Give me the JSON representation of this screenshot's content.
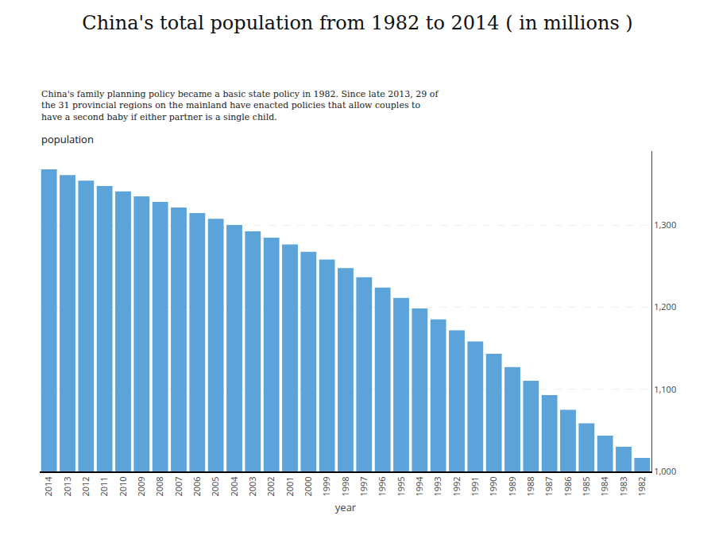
{
  "chart_data": {
    "type": "bar",
    "title": "China's total population from 1982 to 2014 ( in millions )",
    "annotation": "China's family planning policy became a basic state policy in 1982. Since late 2013, 29 of\nthe 31 provincial regions on the mainland have enacted policies that allow couples to\nhave a second baby if either partner is a single child.",
    "xlabel": "year",
    "ylabel": "population",
    "categories": [
      "2014",
      "2013",
      "2012",
      "2011",
      "2010",
      "2009",
      "2008",
      "2007",
      "2006",
      "2005",
      "2004",
      "2003",
      "2002",
      "2001",
      "2000",
      "1999",
      "1998",
      "1997",
      "1996",
      "1995",
      "1994",
      "1993",
      "1992",
      "1991",
      "1990",
      "1989",
      "1988",
      "1987",
      "1986",
      "1985",
      "1984",
      "1983",
      "1982"
    ],
    "values": [
      1367.82,
      1360.72,
      1354.04,
      1347.35,
      1340.91,
      1334.74,
      1328.02,
      1321.29,
      1314.48,
      1307.56,
      1299.88,
      1292.27,
      1284.53,
      1276.27,
      1267.43,
      1257.86,
      1247.61,
      1236.26,
      1223.89,
      1211.21,
      1198.5,
      1185.17,
      1171.71,
      1158.23,
      1143.33,
      1127.04,
      1110.26,
      1093.0,
      1075.07,
      1058.51,
      1043.57,
      1030.08,
      1016.54
    ],
    "color": "#5BA3D9",
    "ylim": [
      1000,
      1390
    ],
    "yticks": [
      {
        "value": 1000,
        "label": "1,000"
      },
      {
        "value": 1100,
        "label": "1,100"
      },
      {
        "value": 1200,
        "label": "1,200"
      },
      {
        "value": 1300,
        "label": "1,300"
      }
    ],
    "grid": true
  }
}
